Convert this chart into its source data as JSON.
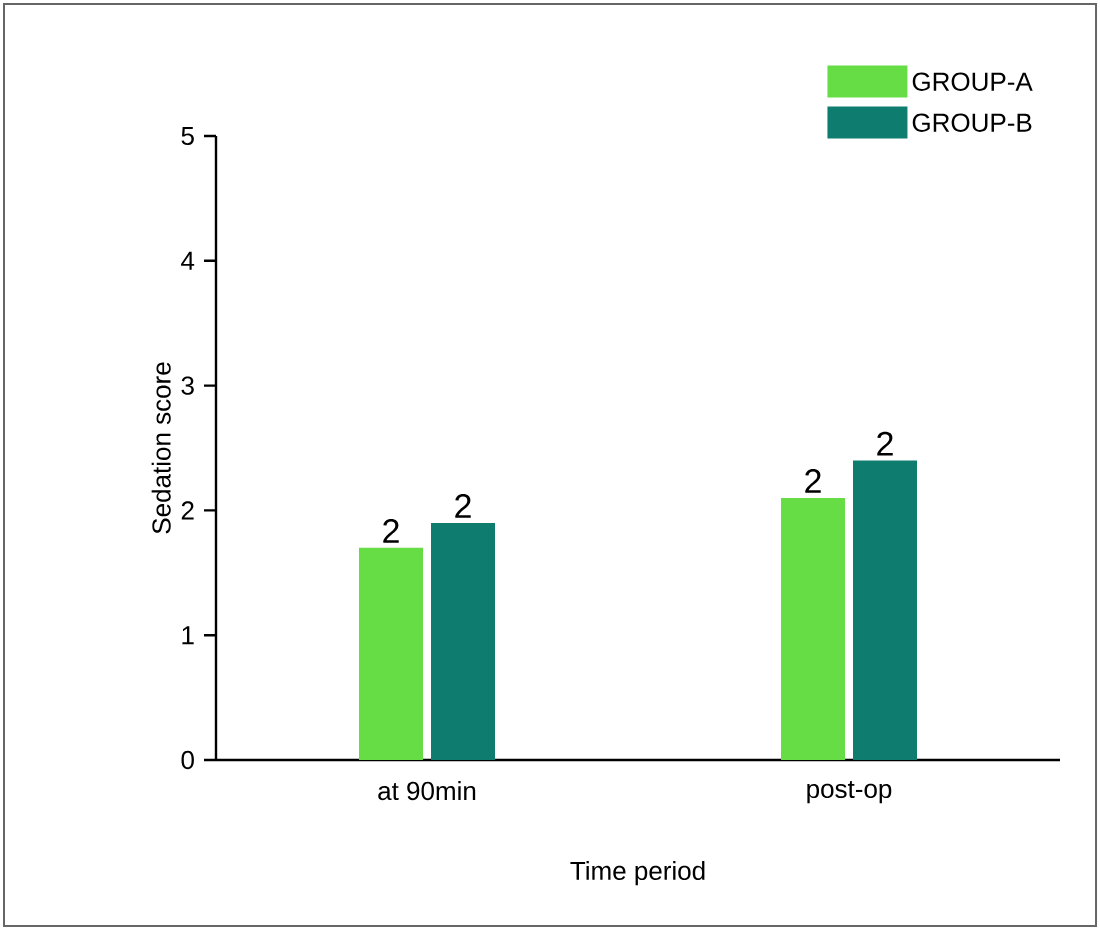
{
  "chart_data": {
    "type": "bar",
    "xlabel": "Time period",
    "ylabel": "Sedation score",
    "categories": [
      "at 90min",
      "post-op"
    ],
    "series": [
      {
        "name": "GROUP-A",
        "color": "#66dd44",
        "values": [
          1.7,
          2.1
        ],
        "value_labels": [
          "2",
          "2"
        ]
      },
      {
        "name": "GROUP-B",
        "color": "#0e7c6e",
        "values": [
          1.9,
          2.4
        ],
        "value_labels": [
          "2",
          "2"
        ]
      }
    ],
    "ylim": [
      0,
      5
    ],
    "yticks": [
      0,
      1,
      2,
      3,
      4,
      5
    ],
    "grid": false,
    "legend": "top right"
  }
}
